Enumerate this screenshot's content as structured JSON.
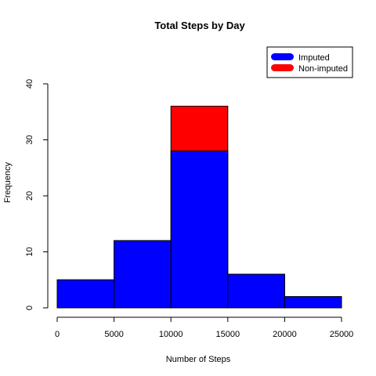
{
  "chart_data": {
    "type": "bar",
    "title": "Total Steps by Day",
    "xlabel": "Number of Steps",
    "ylabel": "Frequency",
    "bins": [
      [
        0,
        5000
      ],
      [
        5000,
        10000
      ],
      [
        10000,
        15000
      ],
      [
        15000,
        20000
      ],
      [
        20000,
        25000
      ]
    ],
    "series": [
      {
        "name": "Non-imputed",
        "color": "#ff0000",
        "values": [
          5,
          12,
          36,
          6,
          2
        ]
      },
      {
        "name": "Imputed",
        "color": "#0000ff",
        "values": [
          5,
          12,
          28,
          6,
          2
        ]
      }
    ],
    "xlim": [
      0,
      25000
    ],
    "ylim": [
      0,
      40
    ],
    "x_ticks": [
      "0",
      "5000",
      "10000",
      "15000",
      "20000",
      "25000"
    ],
    "y_ticks": [
      "0",
      "10",
      "20",
      "30",
      "40"
    ],
    "legend": {
      "position": "top-right",
      "items": [
        {
          "label": "Imputed",
          "color": "#0000ff"
        },
        {
          "label": "Non-imputed",
          "color": "#ff0000"
        }
      ]
    },
    "grid": false
  }
}
